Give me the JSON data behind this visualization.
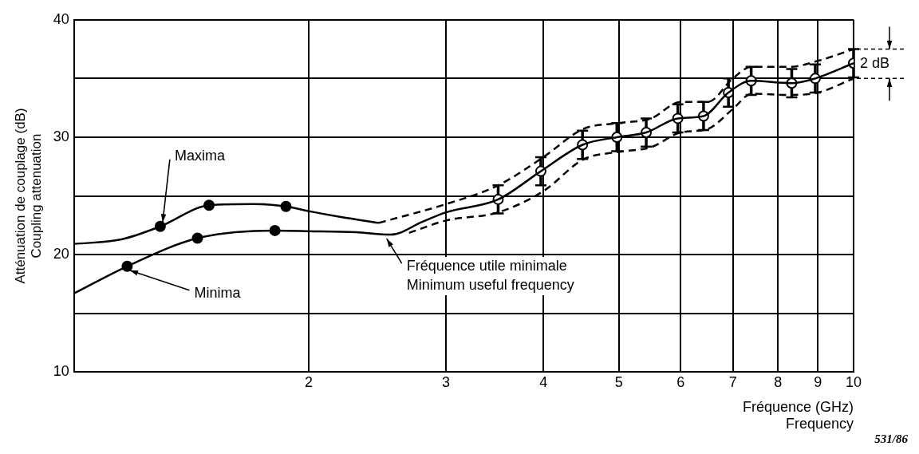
{
  "chart_data": {
    "type": "line",
    "xlabel": "Fréquence (GHz)\nFrequency",
    "ylabel": "Atténuation de couplage (dB)\nCoupling attenuation",
    "log": "x",
    "xlim": [
      1,
      10
    ],
    "ylim": [
      10,
      40
    ],
    "xticks": [
      {
        "value": 1,
        "label": null
      },
      2,
      3,
      4,
      5,
      6,
      7,
      8,
      9,
      10
    ],
    "yticks": [
      10,
      {
        "value": 15,
        "label": null
      },
      20,
      {
        "value": 25,
        "label": null
      },
      30,
      {
        "value": 35,
        "label": null
      },
      40
    ],
    "grid": true,
    "legend": false,
    "series": [
      {
        "type": "line",
        "color": "#000000",
        "marker": "none",
        "line_style": "solid",
        "x": [
          1,
          1.15,
          1.29,
          1.49,
          1.7,
          1.87,
          2,
          2.2,
          2.46
        ],
        "values": [
          20.9,
          21.3,
          22.4,
          24.2,
          24.3,
          24.1,
          23.7,
          23.2,
          22.7
        ]
      },
      {
        "type": "line",
        "color": "#000000",
        "marker": "none",
        "line_style": "solid",
        "x": [
          1,
          1.17,
          1.44,
          1.81,
          2,
          2.3,
          2.55,
          2.8,
          3,
          3.5,
          3.97,
          4.49,
          4.97,
          5.42,
          5.95,
          6.42,
          6.91,
          7.39,
          8.33,
          8.93,
          10
        ],
        "values": [
          16.7,
          19.0,
          21.4,
          22.05,
          22.0,
          21.9,
          21.7,
          22.8,
          23.6,
          24.7,
          27.1,
          29.35,
          30.0,
          30.4,
          31.6,
          31.8,
          33.8,
          34.8,
          34.6,
          35.0,
          36.3
        ]
      },
      {
        "type": "line",
        "color": "#000000",
        "marker": "none",
        "line_style": "dashed",
        "x": [
          2.46,
          3,
          3.5,
          4,
          4.5,
          5,
          5.5,
          6,
          6.5,
          7,
          7.4,
          8.3,
          9,
          10
        ],
        "values": [
          22.7,
          24.3,
          25.9,
          28.3,
          30.7,
          31.2,
          31.6,
          33.0,
          33.0,
          35.0,
          36.0,
          36.0,
          36.5,
          37.5
        ]
      },
      {
        "type": "line",
        "color": "#000000",
        "marker": "none",
        "line_style": "dashed",
        "x": [
          2.69,
          3,
          3.5,
          4,
          4.5,
          5,
          5.5,
          6,
          6.5,
          7,
          7.4,
          8.3,
          9,
          10
        ],
        "values": [
          21.85,
          22.9,
          23.6,
          25.4,
          28.1,
          28.75,
          29.15,
          30.4,
          30.7,
          32.4,
          33.7,
          33.6,
          33.8,
          35.0
        ]
      },
      {
        "type": "scatter",
        "color": "#000000",
        "marker": "circle",
        "x": [
          1.29,
          1.49,
          1.87
        ],
        "values": [
          22.4,
          24.2,
          24.1
        ]
      },
      {
        "type": "scatter",
        "color": "#000000",
        "marker": "circle",
        "x": [
          1.17,
          1.44,
          1.81
        ],
        "values": [
          19.0,
          21.4,
          22.05
        ]
      },
      {
        "type": "scatter",
        "color": "#ffffff",
        "marker": "circle",
        "x": [
          3.5,
          3.97,
          4.49,
          4.97,
          5.42,
          5.95,
          6.42,
          6.91,
          7.39,
          8.33,
          8.93,
          10
        ],
        "values": [
          24.7,
          27.1,
          29.35,
          30.0,
          30.4,
          31.6,
          31.8,
          33.8,
          34.8,
          34.6,
          35.0,
          36.3
        ],
        "errors": [
          1.2,
          1.2,
          1.2,
          1.2,
          1.2,
          1.2,
          1.2,
          1.2,
          1.2,
          1.2,
          1.2,
          1.2
        ]
      }
    ],
    "annotations": [
      {
        "text": "Maxima",
        "x": 1.29,
        "y": 22.4
      },
      {
        "text": "Minima",
        "x": 1.17,
        "y": 19.0
      },
      {
        "text": "Fréquence utile minimale\nMinimum useful frequency",
        "x": 2.5,
        "y": 21.7
      },
      "2 dB",
      "531/86"
    ]
  }
}
